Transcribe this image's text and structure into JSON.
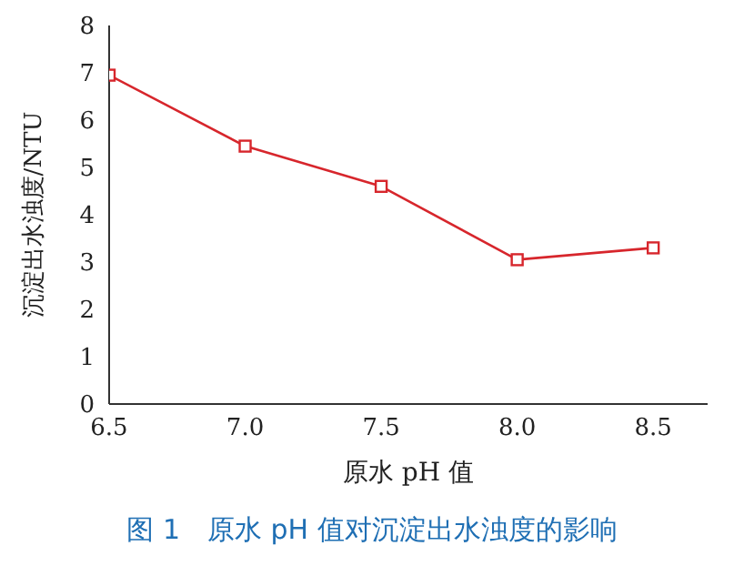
{
  "chart_data": {
    "type": "line",
    "xlabel": "原水 pH 值",
    "ylabel": "沉淀出水浊度/NTU",
    "annotations": [
      "图 1　原水 pH 值对沉淀出水浊度的影响"
    ],
    "x": [
      6.5,
      7.0,
      7.5,
      8.0,
      8.5
    ],
    "series": [
      {
        "color": "#d7262c",
        "values": [
          6.95,
          5.45,
          4.6,
          3.05,
          3.3
        ]
      }
    ],
    "xlim": [
      6.5,
      8.7
    ],
    "xticks": [
      6.5,
      {
        "value": 7,
        "label": "7.0"
      },
      7.5,
      {
        "value": 8,
        "label": "8.0"
      },
      8.5
    ],
    "ylim": [
      0,
      8
    ],
    "yticks": [
      0,
      1,
      2,
      3,
      4,
      5,
      6,
      7,
      8
    ],
    "marker": "square",
    "grid": false,
    "legend": false
  }
}
